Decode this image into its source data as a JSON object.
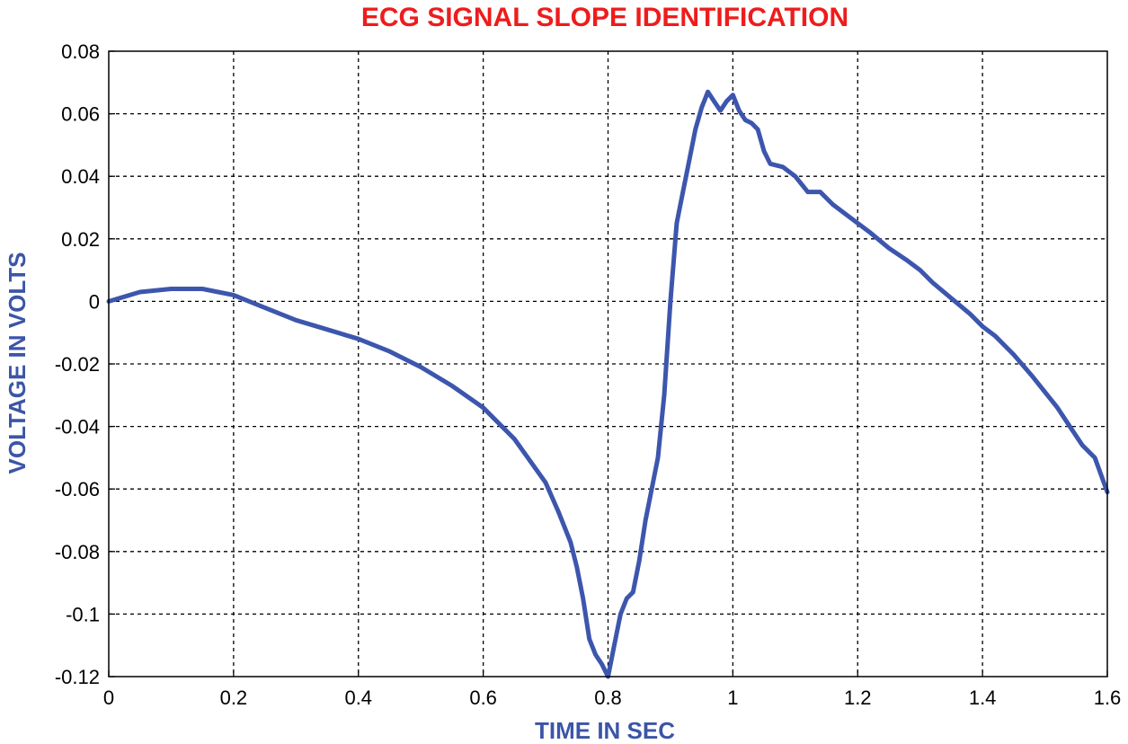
{
  "chart_data": {
    "type": "line",
    "title": "ECG SIGNAL SLOPE IDENTIFICATION",
    "xlabel": "TIME IN SEC",
    "ylabel": "VOLTAGE IN VOLTS",
    "xlim": [
      0,
      1.6
    ],
    "ylim": [
      -0.12,
      0.08
    ],
    "xticks": [
      0,
      0.2,
      0.4,
      0.6,
      0.8,
      1,
      1.2,
      1.4,
      1.6
    ],
    "xtick_labels": [
      "0",
      "0.2",
      "0.4",
      "0.6",
      "0.8",
      "1",
      "1.2",
      "1.4",
      "1.6"
    ],
    "yticks": [
      0.08,
      0.06,
      0.04,
      0.02,
      0,
      -0.02,
      -0.04,
      -0.06,
      -0.08,
      -0.1,
      -0.12
    ],
    "ytick_labels": [
      "0.08",
      "0.06",
      "0.04",
      "0.02",
      "0",
      "-0.02",
      "-0.04",
      "-0.06",
      "-0.08",
      "-0.1",
      "-0.12"
    ],
    "grid": true,
    "colors": {
      "title": "#ee1c1c",
      "axis_label": "#3b55a7",
      "line": "#3d56ad",
      "grid": "#000000"
    },
    "series": [
      {
        "x": [
          0,
          0.05,
          0.1,
          0.15,
          0.2,
          0.25,
          0.3,
          0.35,
          0.4,
          0.45,
          0.5,
          0.55,
          0.6,
          0.65,
          0.7,
          0.72,
          0.74,
          0.75,
          0.76,
          0.77,
          0.78,
          0.79,
          0.8,
          0.81,
          0.82,
          0.83,
          0.84,
          0.85,
          0.86,
          0.87,
          0.88,
          0.89,
          0.9,
          0.91,
          0.92,
          0.93,
          0.94,
          0.95,
          0.96,
          0.97,
          0.98,
          0.99,
          1.0,
          1.01,
          1.02,
          1.03,
          1.04,
          1.05,
          1.06,
          1.08,
          1.1,
          1.12,
          1.14,
          1.16,
          1.18,
          1.2,
          1.22,
          1.25,
          1.28,
          1.3,
          1.32,
          1.35,
          1.38,
          1.4,
          1.42,
          1.45,
          1.48,
          1.5,
          1.52,
          1.54,
          1.56,
          1.58,
          1.6
        ],
        "y": [
          0,
          0.003,
          0.004,
          0.004,
          0.002,
          -0.002,
          -0.006,
          -0.009,
          -0.012,
          -0.016,
          -0.021,
          -0.027,
          -0.034,
          -0.044,
          -0.058,
          -0.067,
          -0.077,
          -0.085,
          -0.095,
          -0.108,
          -0.113,
          -0.116,
          -0.12,
          -0.11,
          -0.1,
          -0.095,
          -0.093,
          -0.083,
          -0.07,
          -0.06,
          -0.05,
          -0.03,
          0.0,
          0.025,
          0.035,
          0.045,
          0.055,
          0.062,
          0.067,
          0.064,
          0.061,
          0.064,
          0.066,
          0.061,
          0.058,
          0.057,
          0.055,
          0.048,
          0.044,
          0.043,
          0.04,
          0.035,
          0.035,
          0.031,
          0.028,
          0.025,
          0.022,
          0.017,
          0.013,
          0.01,
          0.006,
          0.001,
          -0.004,
          -0.008,
          -0.011,
          -0.017,
          -0.024,
          -0.029,
          -0.034,
          -0.04,
          -0.046,
          -0.05,
          -0.061
        ]
      }
    ]
  }
}
